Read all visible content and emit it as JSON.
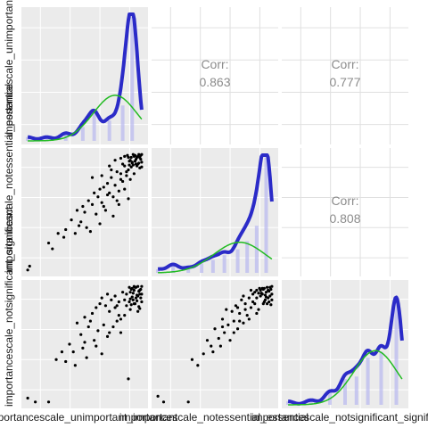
{
  "chart_data": {
    "type": "scatter",
    "layout": "pairs-matrix",
    "variables": [
      "importancescale_unimportant_important",
      "importancescale_notessential_essential",
      "importancescale_notsignificant_significant"
    ],
    "diagonal_labels": [
      "importancescale_unimportant_important",
      "importancescale_notessential_essential",
      "importancescale_notsignificant_significant"
    ],
    "column_labels": [
      "importancescale_unimportant_important",
      "importancescale_notessential_essential",
      "importancescale_notsignificant_significant"
    ],
    "correlation_label": "Corr:",
    "correlations": [
      {
        "row": 0,
        "col": 1,
        "value": "0.863"
      },
      {
        "row": 0,
        "col": 2,
        "value": "0.777"
      },
      {
        "row": 1,
        "col": 2,
        "value": "0.808"
      }
    ],
    "domain": [
      1,
      7
    ],
    "densities": [
      {
        "panel": 0,
        "blue_peaks": [
          [
            1.0,
            0.03
          ],
          [
            2.0,
            0.03
          ],
          [
            3.0,
            0.06
          ],
          [
            3.9,
            0.11
          ],
          [
            4.5,
            0.22
          ],
          [
            5.3,
            0.16
          ],
          [
            6.0,
            0.28
          ],
          [
            6.5,
            0.98
          ]
        ],
        "green_peak": [
          5.6,
          0.36
        ],
        "green_sd": 1.15
      },
      {
        "panel": 1,
        "blue_peaks": [
          [
            1.0,
            0.03
          ],
          [
            1.8,
            0.07
          ],
          [
            2.6,
            0.04
          ],
          [
            3.3,
            0.08
          ],
          [
            3.9,
            0.11
          ],
          [
            4.5,
            0.15
          ],
          [
            5.2,
            0.2
          ],
          [
            5.7,
            0.27
          ],
          [
            6.2,
            0.4
          ],
          [
            6.7,
            0.98
          ]
        ],
        "green_peak": [
          5.3,
          0.26
        ],
        "green_sd": 1.35
      },
      {
        "panel": 2,
        "blue_peaks": [
          [
            1.0,
            0.03
          ],
          [
            2.2,
            0.04
          ],
          [
            3.2,
            0.11
          ],
          [
            4.0,
            0.22
          ],
          [
            4.6,
            0.24
          ],
          [
            5.2,
            0.4
          ],
          [
            5.9,
            0.45
          ],
          [
            6.7,
            0.9
          ]
        ],
        "green_peak": [
          5.6,
          0.46
        ],
        "green_sd": 1.15
      }
    ],
    "scatter": [
      {
        "row": 1,
        "col": 0,
        "points": [
          [
            1.1,
            1.2
          ],
          [
            1.0,
            1.0
          ],
          [
            2.1,
            2.4
          ],
          [
            2.3,
            2.1
          ],
          [
            2.6,
            2.9
          ],
          [
            2.9,
            2.7
          ],
          [
            3.0,
            3.1
          ],
          [
            3.3,
            3.6
          ],
          [
            3.5,
            2.9
          ],
          [
            3.6,
            4.1
          ],
          [
            3.8,
            3.5
          ],
          [
            3.9,
            4.3
          ],
          [
            4.0,
            4.0
          ],
          [
            4.1,
            3.2
          ],
          [
            4.2,
            4.6
          ],
          [
            4.4,
            4.4
          ],
          [
            4.5,
            5.0
          ],
          [
            4.6,
            3.9
          ],
          [
            4.7,
            4.8
          ],
          [
            4.8,
            5.2
          ],
          [
            4.9,
            4.5
          ],
          [
            5.0,
            5.3
          ],
          [
            5.1,
            4.1
          ],
          [
            5.2,
            5.5
          ],
          [
            5.3,
            5.0
          ],
          [
            5.4,
            5.8
          ],
          [
            5.5,
            4.8
          ],
          [
            5.6,
            5.4
          ],
          [
            5.7,
            6.1
          ],
          [
            5.8,
            5.1
          ],
          [
            5.9,
            6.0
          ],
          [
            6.0,
            5.6
          ],
          [
            6.1,
            6.4
          ],
          [
            6.2,
            5.9
          ],
          [
            6.3,
            6.2
          ],
          [
            6.4,
            5.7
          ],
          [
            6.5,
            6.6
          ],
          [
            6.6,
            6.0
          ],
          [
            6.7,
            6.5
          ],
          [
            6.8,
            6.9
          ],
          [
            6.9,
            6.3
          ],
          [
            7.0,
            7.0
          ],
          [
            6.95,
            6.75
          ],
          [
            6.85,
            6.55
          ],
          [
            6.75,
            6.85
          ],
          [
            6.65,
            6.95
          ],
          [
            6.55,
            6.45
          ],
          [
            6.45,
            6.85
          ],
          [
            6.35,
            6.65
          ],
          [
            6.25,
            6.95
          ],
          [
            7.0,
            6.6
          ],
          [
            6.9,
            6.85
          ],
          [
            6.8,
            6.5
          ],
          [
            6.7,
            6.75
          ],
          [
            6.6,
            6.9
          ],
          [
            6.5,
            6.55
          ],
          [
            6.4,
            6.7
          ],
          [
            6.3,
            6.85
          ],
          [
            7.0,
            6.35
          ],
          [
            6.85,
            7.0
          ],
          [
            6.75,
            6.4
          ],
          [
            6.65,
            6.65
          ],
          [
            6.55,
            7.0
          ],
          [
            6.45,
            6.35
          ],
          [
            6.95,
            6.95
          ],
          [
            6.35,
            6.45
          ],
          [
            5.6,
            6.7
          ],
          [
            5.9,
            6.8
          ],
          [
            6.1,
            6.9
          ],
          [
            5.3,
            6.4
          ],
          [
            4.4,
            5.8
          ],
          [
            5.0,
            4.3
          ],
          [
            5.8,
            4.4
          ],
          [
            4.8,
            3.4
          ],
          [
            6.3,
            4.7
          ],
          [
            5.5,
            3.8
          ],
          [
            4.3,
            3.0
          ],
          [
            6.1,
            5.2
          ],
          [
            5.9,
            5.7
          ],
          [
            5.7,
            4.6
          ],
          [
            6.2,
            6.1
          ],
          [
            5.4,
            6.2
          ],
          [
            6.0,
            6.5
          ],
          [
            4.9,
            5.9
          ],
          [
            3.7,
            3.3
          ],
          [
            5.2,
            4.9
          ]
        ]
      },
      {
        "row": 2,
        "col": 0,
        "points": [
          [
            1.0,
            1.2
          ],
          [
            1.4,
            1.0
          ],
          [
            2.1,
            1.0
          ],
          [
            2.5,
            3.2
          ],
          [
            2.8,
            3.6
          ],
          [
            3.0,
            3.1
          ],
          [
            3.2,
            4.0
          ],
          [
            3.5,
            2.9
          ],
          [
            3.6,
            5.1
          ],
          [
            3.8,
            4.5
          ],
          [
            3.9,
            3.8
          ],
          [
            4.0,
            5.4
          ],
          [
            4.1,
            3.3
          ],
          [
            4.2,
            4.9
          ],
          [
            4.4,
            5.6
          ],
          [
            4.5,
            4.2
          ],
          [
            4.6,
            5.9
          ],
          [
            4.7,
            4.7
          ],
          [
            4.8,
            6.1
          ],
          [
            4.9,
            3.5
          ],
          [
            5.0,
            5.0
          ],
          [
            5.1,
            6.0
          ],
          [
            5.2,
            4.4
          ],
          [
            5.3,
            5.7
          ],
          [
            5.4,
            6.3
          ],
          [
            5.5,
            4.9
          ],
          [
            5.6,
            6.5
          ],
          [
            5.7,
            5.2
          ],
          [
            5.8,
            6.2
          ],
          [
            5.9,
            4.6
          ],
          [
            6.0,
            6.7
          ],
          [
            6.1,
            5.5
          ],
          [
            6.2,
            6.0
          ],
          [
            6.3,
            2.2
          ],
          [
            6.4,
            5.8
          ],
          [
            6.5,
            6.9
          ],
          [
            6.6,
            6.1
          ],
          [
            6.7,
            6.4
          ],
          [
            6.8,
            5.7
          ],
          [
            6.9,
            6.8
          ],
          [
            7.0,
            6.2
          ],
          [
            6.45,
            6.85
          ],
          [
            6.55,
            6.65
          ],
          [
            6.65,
            6.95
          ],
          [
            6.75,
            6.55
          ],
          [
            6.85,
            6.75
          ],
          [
            6.95,
            6.85
          ],
          [
            6.35,
            6.95
          ],
          [
            7.0,
            6.6
          ],
          [
            6.5,
            6.45
          ],
          [
            6.6,
            6.8
          ],
          [
            6.7,
            6.95
          ],
          [
            6.8,
            6.5
          ],
          [
            6.9,
            6.6
          ],
          [
            7.0,
            7.0
          ],
          [
            6.4,
            6.7
          ],
          [
            6.55,
            6.3
          ],
          [
            6.75,
            6.25
          ],
          [
            6.95,
            6.4
          ],
          [
            6.85,
            5.95
          ],
          [
            6.65,
            6.1
          ],
          [
            6.35,
            6.2
          ],
          [
            6.45,
            6.05
          ],
          [
            6.8,
            7.0
          ],
          [
            6.6,
            7.0
          ],
          [
            6.4,
            6.35
          ],
          [
            6.9,
            5.85
          ],
          [
            5.2,
            6.6
          ],
          [
            5.6,
            5.9
          ],
          [
            4.3,
            5.2
          ],
          [
            4.9,
            6.4
          ],
          [
            5.8,
            5.5
          ],
          [
            6.1,
            6.3
          ],
          [
            5.3,
            4.6
          ],
          [
            4.0,
            4.1
          ],
          [
            3.4,
            3.6
          ],
          [
            5.7,
            6.0
          ],
          [
            6.2,
            6.6
          ],
          [
            4.6,
            3.9
          ],
          [
            5.9,
            5.3
          ]
        ]
      },
      {
        "row": 2,
        "col": 1,
        "points": [
          [
            1.0,
            1.3
          ],
          [
            1.3,
            1.0
          ],
          [
            2.6,
            1.0
          ],
          [
            2.8,
            3.2
          ],
          [
            3.1,
            2.9
          ],
          [
            3.4,
            3.5
          ],
          [
            3.6,
            4.2
          ],
          [
            3.9,
            3.6
          ],
          [
            4.0,
            4.8
          ],
          [
            4.2,
            4.3
          ],
          [
            4.3,
            3.9
          ],
          [
            4.4,
            5.3
          ],
          [
            4.5,
            4.6
          ],
          [
            4.7,
            5.0
          ],
          [
            4.8,
            4.2
          ],
          [
            4.9,
            5.7
          ],
          [
            5.0,
            5.2
          ],
          [
            5.1,
            6.0
          ],
          [
            5.2,
            4.8
          ],
          [
            5.3,
            5.6
          ],
          [
            5.4,
            6.3
          ],
          [
            5.5,
            5.1
          ],
          [
            5.6,
            6.1
          ],
          [
            5.7,
            5.5
          ],
          [
            5.8,
            6.4
          ],
          [
            5.9,
            5.9
          ],
          [
            6.0,
            6.6
          ],
          [
            6.1,
            6.1
          ],
          [
            6.2,
            6.8
          ],
          [
            6.3,
            5.8
          ],
          [
            6.4,
            6.5
          ],
          [
            6.5,
            6.9
          ],
          [
            6.6,
            6.2
          ],
          [
            6.7,
            6.7
          ],
          [
            6.8,
            6.4
          ],
          [
            6.9,
            6.95
          ],
          [
            7.0,
            6.6
          ],
          [
            6.95,
            6.85
          ],
          [
            6.85,
            6.75
          ],
          [
            6.75,
            6.95
          ],
          [
            6.65,
            6.55
          ],
          [
            6.55,
            6.85
          ],
          [
            6.45,
            6.65
          ],
          [
            6.35,
            6.9
          ],
          [
            7.0,
            7.0
          ],
          [
            6.9,
            6.5
          ],
          [
            6.8,
            6.8
          ],
          [
            6.7,
            6.45
          ],
          [
            6.6,
            6.9
          ],
          [
            6.5,
            6.6
          ],
          [
            6.4,
            6.8
          ],
          [
            6.3,
            6.65
          ],
          [
            6.2,
            6.4
          ],
          [
            7.0,
            6.3
          ],
          [
            6.85,
            6.2
          ],
          [
            6.75,
            6.1
          ],
          [
            6.95,
            6.05
          ],
          [
            6.65,
            6.3
          ],
          [
            6.55,
            6.1
          ],
          [
            5.9,
            6.8
          ],
          [
            6.1,
            6.7
          ],
          [
            5.5,
            6.5
          ],
          [
            5.3,
            5.2
          ],
          [
            4.6,
            5.8
          ],
          [
            5.8,
            5.3
          ],
          [
            6.2,
            5.6
          ],
          [
            5.0,
            4.6
          ],
          [
            4.4,
            4.9
          ],
          [
            5.6,
            5.8
          ],
          [
            6.0,
            6.2
          ],
          [
            3.8,
            3.9
          ],
          [
            5.2,
            5.9
          ]
        ]
      }
    ]
  }
}
